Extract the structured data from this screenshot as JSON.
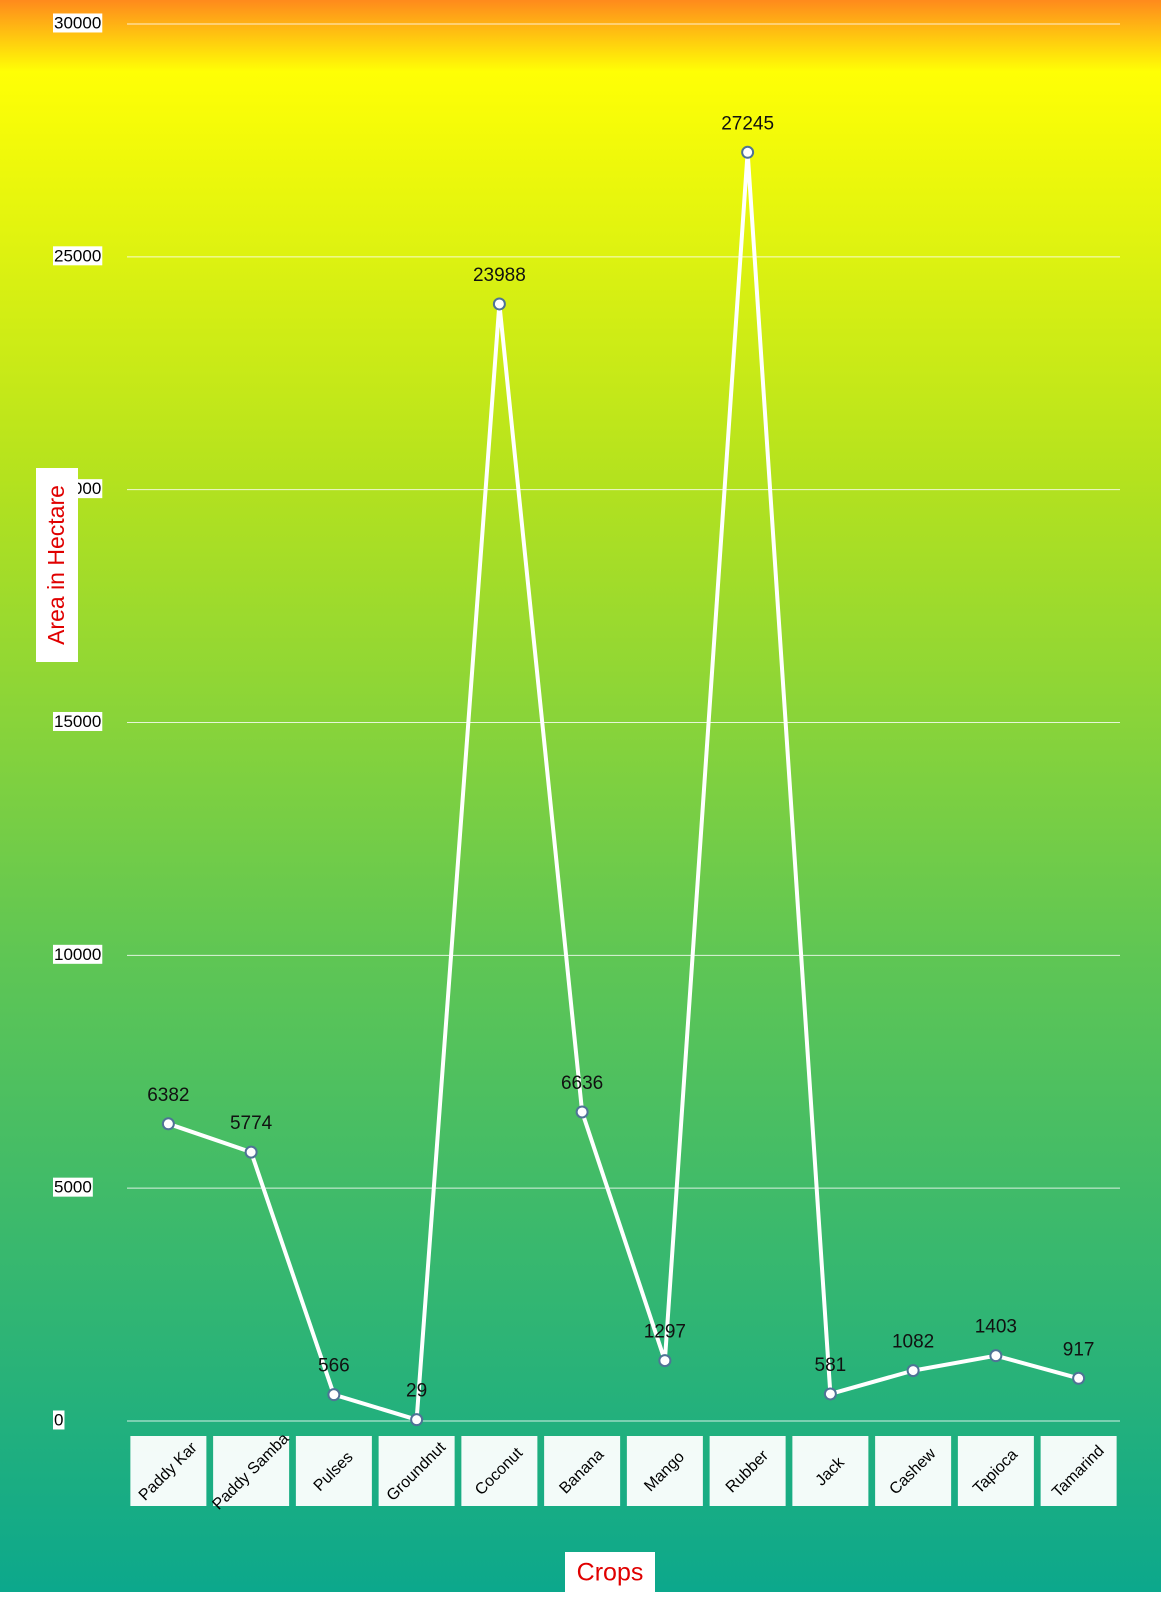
{
  "chart_data": {
    "type": "line",
    "x_label": "Crops",
    "y_label": "Area in Hectare",
    "categories": [
      "Paddy Kar",
      "Paddy Samba",
      "Pulses",
      "Groundnut",
      "Coconut",
      "Banana",
      "Mango",
      "Rubber",
      "Jack",
      "Cashew",
      "Tapioca",
      "Tamarind"
    ],
    "values": [
      6382,
      5774,
      566,
      29,
      23988,
      6636,
      1297,
      27245,
      581,
      1082,
      1403,
      917
    ],
    "color": "#ffffff",
    "ylim": [
      0,
      30000
    ],
    "yticks": [
      0,
      5000,
      10000,
      15000,
      20000,
      25000,
      30000
    ],
    "grid": true
  }
}
